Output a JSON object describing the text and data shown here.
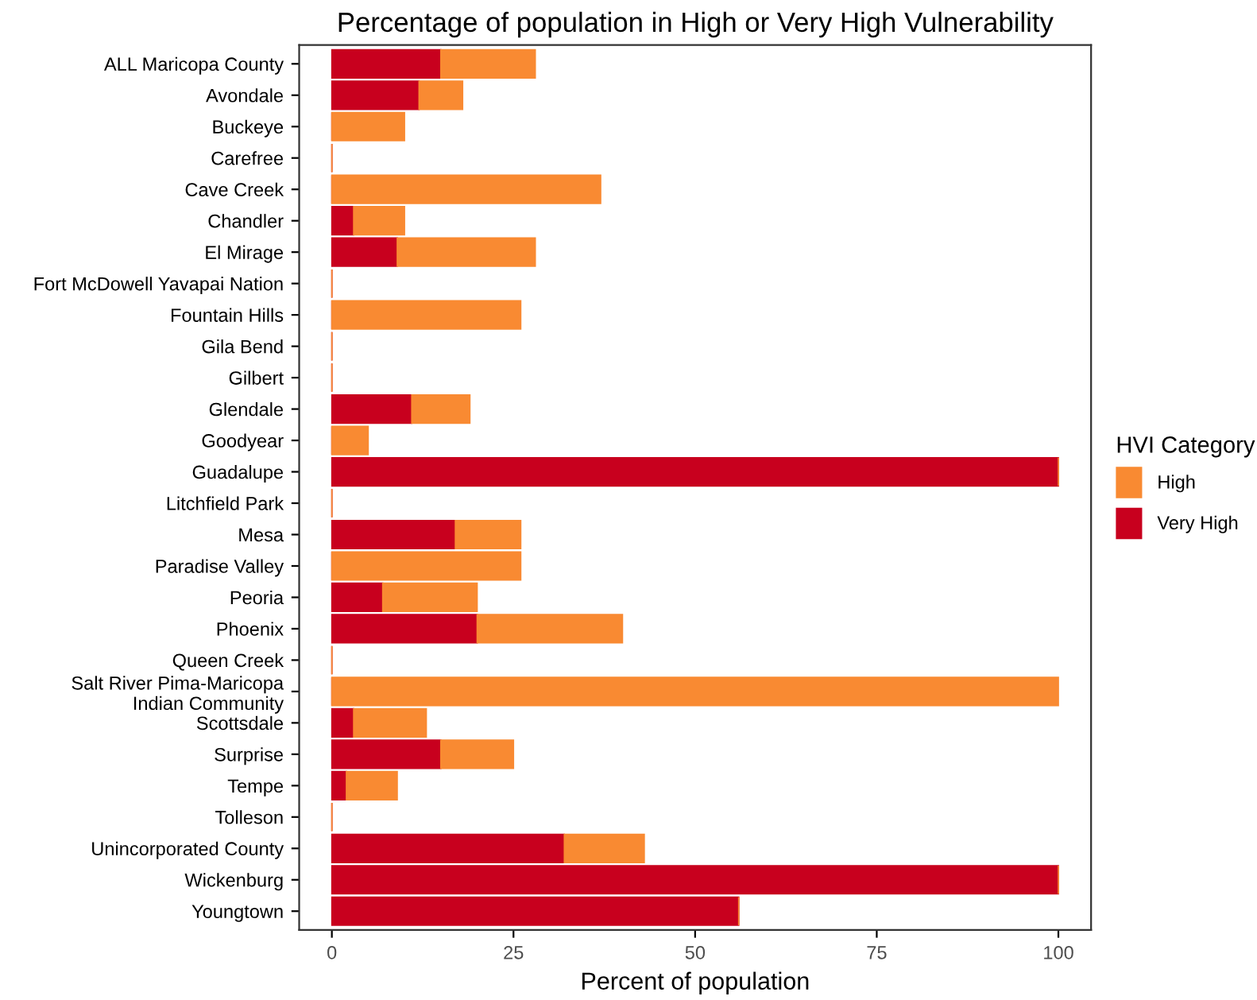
{
  "chart_data": {
    "type": "bar",
    "orientation": "horizontal",
    "stacked": true,
    "title": "Percentage of population in High or Very High Vulnerability",
    "xlabel": "Percent of population",
    "legend_title": "HVI Category",
    "legend": "right",
    "categories": [
      "ALL Maricopa County",
      "Avondale",
      "Buckeye",
      "Carefree",
      "Cave Creek",
      "Chandler",
      "El Mirage",
      "Fort McDowell Yavapai Nation",
      "Fountain Hills",
      "Gila Bend",
      "Gilbert",
      "Glendale",
      "Goodyear",
      "Guadalupe",
      "Litchfield Park",
      "Mesa",
      "Paradise Valley",
      "Peoria",
      "Phoenix",
      "Queen Creek",
      "Salt River Pima-Maricopa\nIndian Community",
      "Scottsdale",
      "Surprise",
      "Tempe",
      "Tolleson",
      "Unincorporated County",
      "Wickenburg",
      "Youngtown"
    ],
    "series": [
      {
        "name": "Very High",
        "color": "#c8001e",
        "values": [
          15,
          12,
          0,
          0,
          0,
          3,
          9,
          0,
          0,
          0,
          0,
          11,
          0,
          100,
          0,
          17,
          0,
          7,
          20,
          0,
          0,
          3,
          15,
          2,
          0,
          32,
          100,
          56
        ]
      },
      {
        "name": "High",
        "color": "#f98a32",
        "values": [
          13,
          6,
          10,
          0,
          37,
          7,
          19,
          0,
          26,
          0,
          0,
          8,
          5,
          0,
          0,
          9,
          26,
          13,
          20,
          0,
          100,
          10,
          10,
          7,
          0,
          11,
          0,
          0
        ]
      }
    ],
    "xlim": [
      -4.5,
      104.5
    ],
    "xticks": [
      0,
      25,
      50,
      75,
      100
    ],
    "grid": false
  }
}
